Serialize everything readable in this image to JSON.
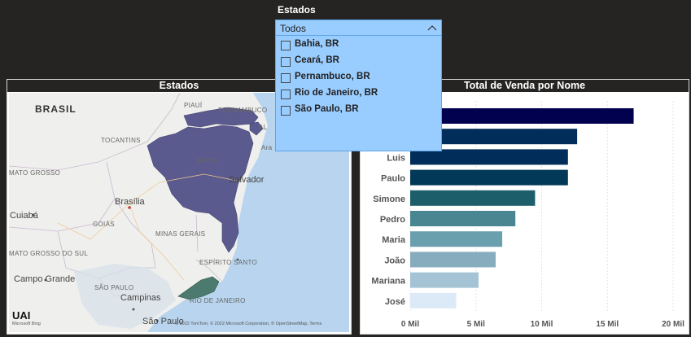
{
  "slicer": {
    "title": "Estados",
    "selected": "Todos",
    "options": [
      "Bahia, BR",
      "Ceará, BR",
      "Pernambuco, BR",
      "Rio de Janeiro, BR",
      "São Paulo, BR"
    ]
  },
  "map": {
    "title": "Estados",
    "country_label": "BRASIL",
    "region_labels": [
      "PIAUÍ",
      "PERNAMBUCO",
      "AL",
      "TOCANTINS",
      "BAHIA",
      "MATO GROSSO",
      "GOIÁS",
      "MINAS GERAIS",
      "MATO GROSSO DO SUL",
      "ESPÍRITO SANTO",
      "SÃO PAULO",
      "RIO DE JANEIRO",
      "Ara"
    ],
    "city_labels": [
      "Brasília",
      "Cuiabá",
      "Salvador",
      "Campo Grande",
      "Campinas",
      "São Paulo"
    ],
    "attribution": "© 2022 TomTom, © 2022 Microsoft Corporation, © OpenStreetMap, Terms",
    "logo_text": "UAI",
    "logo_sub": "Microsoft Bing",
    "highlighted_states": [
      "Pernambuco",
      "Alagoas",
      "Bahia",
      "Rio de Janeiro"
    ],
    "colors": {
      "state_fill": "#5b5a8e",
      "sea": "#b8d4ee",
      "land": "#eeeeec",
      "rj_fill": "#4c7a6e"
    }
  },
  "chart_data": {
    "type": "bar",
    "orientation": "horizontal",
    "title": "Total de Venda por Nome",
    "categories": [
      "",
      "",
      "Luis",
      "Paulo",
      "Simone",
      "Pedro",
      "Maria",
      "João",
      "Mariana",
      "José"
    ],
    "values": [
      17000,
      12700,
      12000,
      12000,
      9500,
      8000,
      7000,
      6500,
      5200,
      3500
    ],
    "colors": [
      "#01014f",
      "#012d5a",
      "#012d5a",
      "#023858",
      "#1c5f6b",
      "#4a8592",
      "#6aa0ae",
      "#86acbd",
      "#a4c4d6",
      "#dceaf8"
    ],
    "xlim": [
      0,
      20000
    ],
    "xticks": [
      0,
      5000,
      10000,
      15000,
      20000
    ],
    "xtick_labels": [
      "0 Mil",
      "5 Mil",
      "10 Mil",
      "15 Mil",
      "20 Mil"
    ],
    "grid": true
  }
}
